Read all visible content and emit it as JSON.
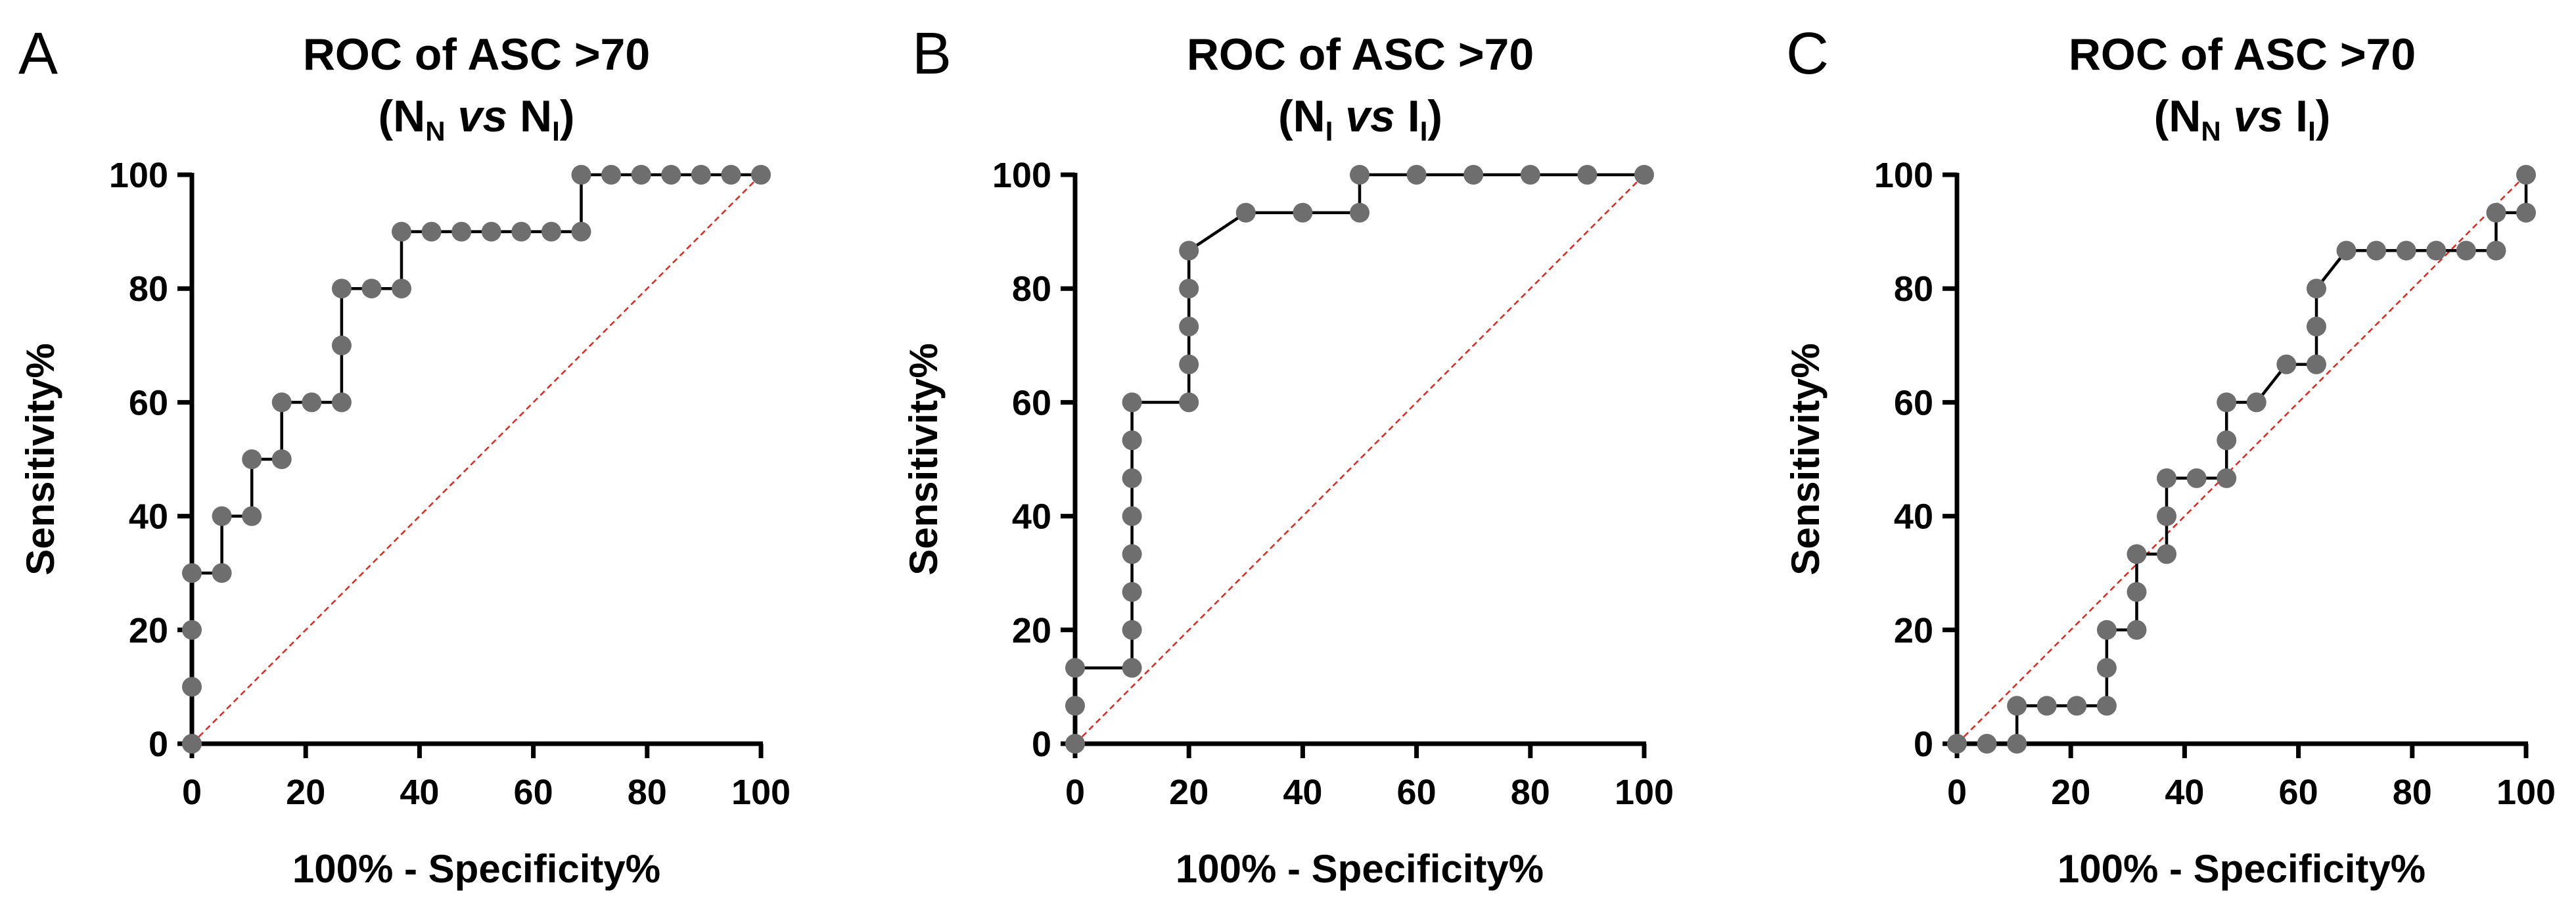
{
  "chart_data": [
    {
      "type": "line",
      "panel_letter": "A",
      "title_line1": "ROC of ASC >70",
      "title_parts": [
        {
          "t": "(N",
          "s": "n"
        },
        {
          "t": "N",
          "s": "sub"
        },
        {
          "t": " ",
          "s": "n"
        },
        {
          "t": "vs",
          "s": "i"
        },
        {
          "t": " N",
          "s": "n"
        },
        {
          "t": "I",
          "s": "sub"
        },
        {
          "t": ")",
          "s": "n"
        }
      ],
      "xlabel": "100% - Specificity%",
      "ylabel": "Sensitivity%",
      "xlim": [
        0,
        100
      ],
      "ylim": [
        0,
        100
      ],
      "xticks": [
        0,
        20,
        40,
        60,
        80,
        100
      ],
      "yticks": [
        0,
        20,
        40,
        60,
        80,
        100
      ],
      "diagonal": true,
      "series": [
        {
          "name": "ROC",
          "x": [
            0,
            0,
            0,
            0,
            5.26,
            5.26,
            10.53,
            10.53,
            15.79,
            15.79,
            21.05,
            26.32,
            26.32,
            26.32,
            31.58,
            36.84,
            36.84,
            42.11,
            47.37,
            52.63,
            57.89,
            63.16,
            68.42,
            68.42,
            73.68,
            78.95,
            84.21,
            89.47,
            94.74,
            100
          ],
          "y": [
            0,
            10,
            20,
            30,
            30,
            40,
            40,
            50,
            50,
            60,
            60,
            60,
            70,
            80,
            80,
            80,
            90,
            90,
            90,
            90,
            90,
            90,
            90,
            100,
            100,
            100,
            100,
            100,
            100,
            100
          ]
        }
      ]
    },
    {
      "type": "line",
      "panel_letter": "B",
      "title_line1": "ROC of ASC >70",
      "title_parts": [
        {
          "t": "(N",
          "s": "n"
        },
        {
          "t": "I",
          "s": "sub"
        },
        {
          "t": " ",
          "s": "n"
        },
        {
          "t": "vs",
          "s": "i"
        },
        {
          "t": " I",
          "s": "n"
        },
        {
          "t": "I",
          "s": "sub"
        },
        {
          "t": ")",
          "s": "n"
        }
      ],
      "xlabel": "100% - Specificity%",
      "ylabel": "Sensitivity%",
      "xlim": [
        0,
        100
      ],
      "ylim": [
        0,
        100
      ],
      "xticks": [
        0,
        20,
        40,
        60,
        80,
        100
      ],
      "yticks": [
        0,
        20,
        40,
        60,
        80,
        100
      ],
      "diagonal": true,
      "series": [
        {
          "name": "ROC",
          "x": [
            0,
            0,
            0,
            10,
            10,
            10,
            10,
            10,
            10,
            10,
            10,
            20,
            20,
            20,
            20,
            20,
            30,
            40,
            50,
            50,
            60,
            70,
            80,
            90,
            100
          ],
          "y": [
            0,
            6.67,
            13.33,
            13.33,
            20,
            26.67,
            33.33,
            40,
            46.67,
            53.33,
            60,
            60,
            66.67,
            73.33,
            80,
            86.67,
            93.33,
            93.33,
            93.33,
            100,
            100,
            100,
            100,
            100,
            100
          ]
        }
      ]
    },
    {
      "type": "line",
      "panel_letter": "C",
      "title_line1": "ROC of ASC >70",
      "title_parts": [
        {
          "t": "(N",
          "s": "n"
        },
        {
          "t": "N",
          "s": "sub"
        },
        {
          "t": " ",
          "s": "n"
        },
        {
          "t": "vs",
          "s": "i"
        },
        {
          "t": " I",
          "s": "n"
        },
        {
          "t": "I",
          "s": "sub"
        },
        {
          "t": ")",
          "s": "n"
        }
      ],
      "xlabel": "100% - Specificity%",
      "ylabel": "Sensitivity%",
      "xlim": [
        0,
        100
      ],
      "ylim": [
        0,
        100
      ],
      "xticks": [
        0,
        20,
        40,
        60,
        80,
        100
      ],
      "yticks": [
        0,
        20,
        40,
        60,
        80,
        100
      ],
      "diagonal": true,
      "series": [
        {
          "name": "ROC",
          "x": [
            0,
            5.26,
            10.53,
            10.53,
            15.79,
            21.05,
            26.32,
            26.32,
            26.32,
            31.58,
            31.58,
            31.58,
            36.84,
            36.84,
            36.84,
            42.11,
            47.37,
            47.37,
            47.37,
            52.63,
            57.89,
            63.16,
            63.16,
            63.16,
            68.42,
            73.68,
            78.95,
            84.21,
            89.47,
            94.74,
            94.74,
            100,
            100
          ],
          "y": [
            0,
            0,
            0,
            6.67,
            6.67,
            6.67,
            6.67,
            13.33,
            20,
            20,
            26.67,
            33.33,
            33.33,
            40,
            46.67,
            46.67,
            46.67,
            53.33,
            60,
            60,
            66.67,
            66.67,
            73.33,
            80,
            86.67,
            86.67,
            86.67,
            86.67,
            86.67,
            86.67,
            93.33,
            93.33,
            100
          ]
        }
      ]
    }
  ]
}
